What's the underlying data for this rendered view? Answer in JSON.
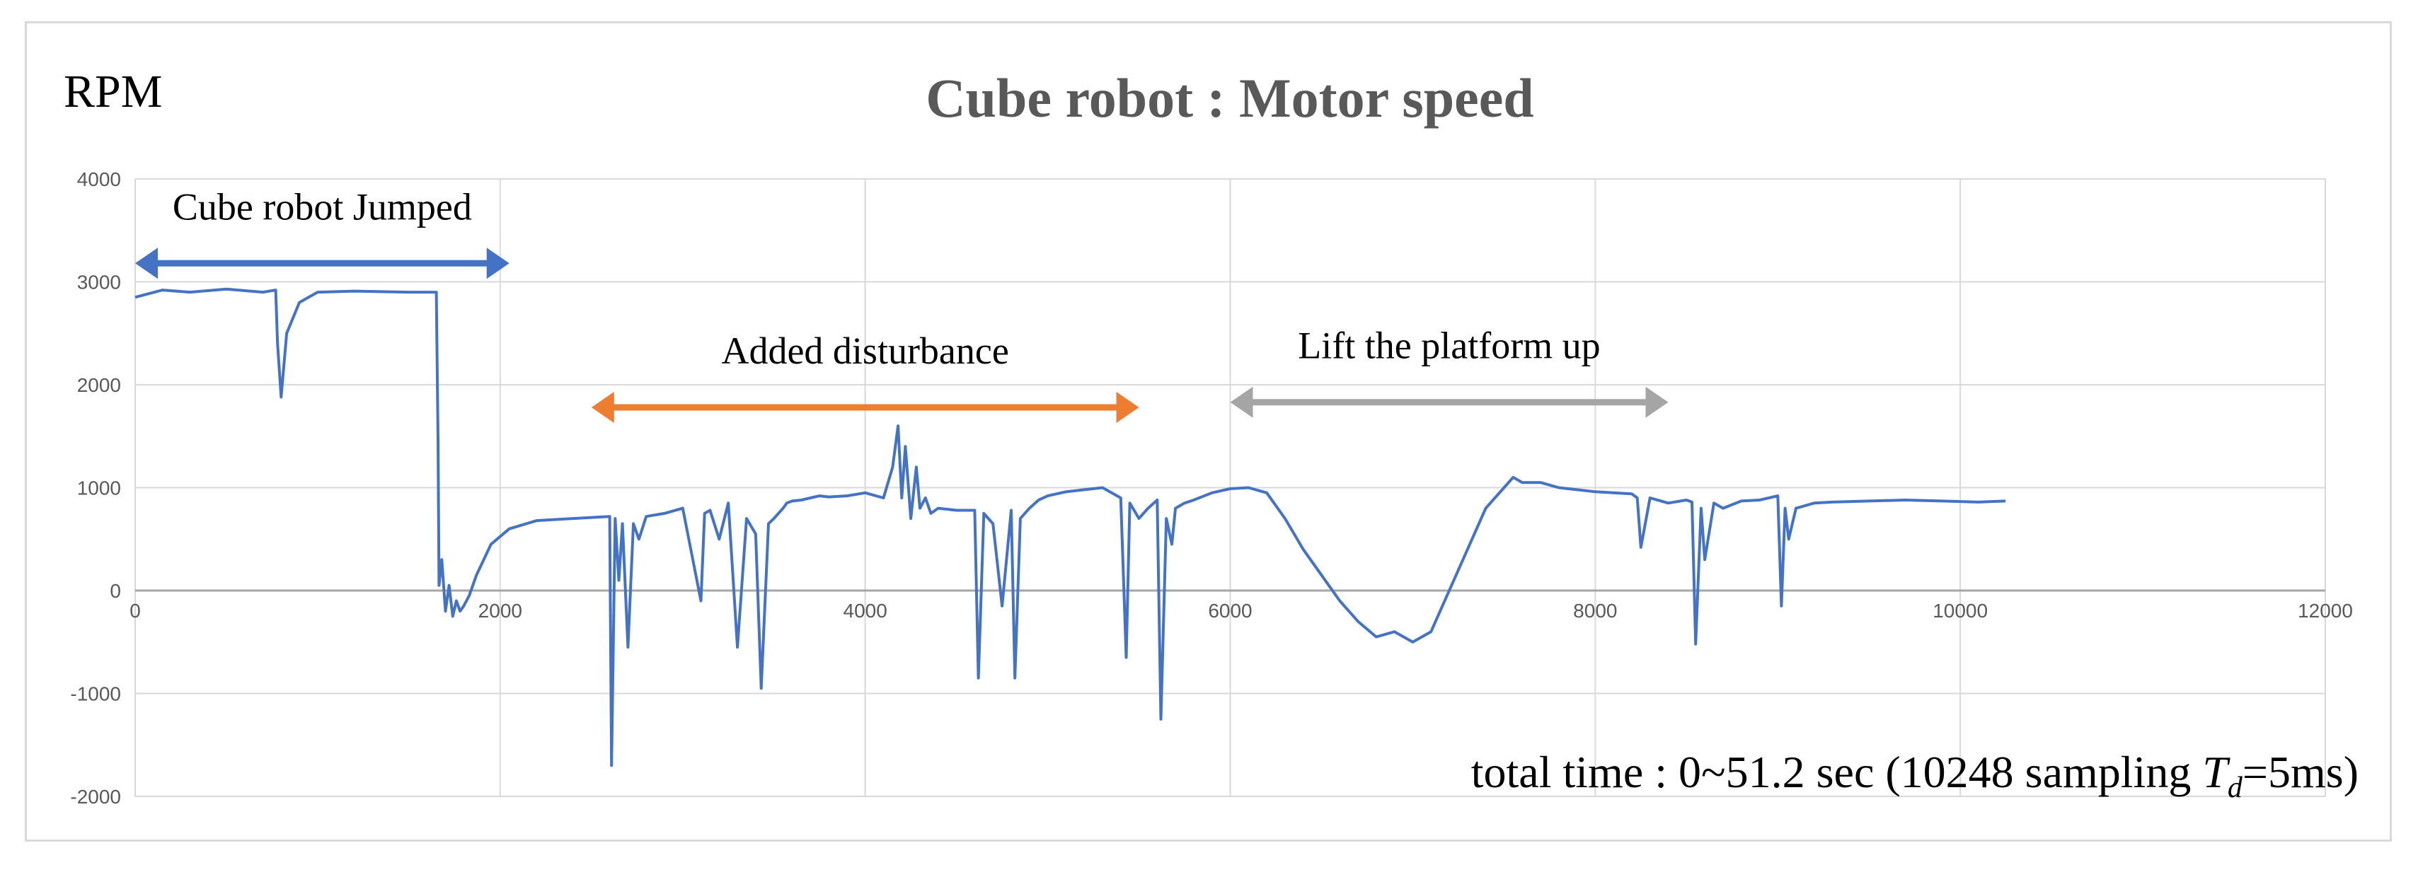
{
  "chart_data": {
    "type": "line",
    "title": "Cube robot : Motor speed",
    "ylabel": "RPM",
    "xlabel": "",
    "xlim": [
      0,
      12000
    ],
    "ylim": [
      -2000,
      4000
    ],
    "x_ticks": [
      0,
      2000,
      4000,
      6000,
      8000,
      10000,
      12000
    ],
    "y_ticks": [
      -2000,
      -1000,
      0,
      1000,
      2000,
      3000,
      4000
    ],
    "grid": true,
    "legend": "none",
    "series": [
      {
        "color": "#4472c4",
        "x": [
          0,
          150,
          300,
          500,
          700,
          770,
          780,
          800,
          830,
          900,
          1000,
          1200,
          1500,
          1650,
          1660,
          1665,
          1680,
          1700,
          1720,
          1740,
          1760,
          1780,
          1800,
          1830,
          1870,
          1950,
          2050,
          2200,
          2400,
          2600,
          2610,
          2630,
          2650,
          2670,
          2700,
          2730,
          2760,
          2800,
          2900,
          3000,
          3100,
          3120,
          3150,
          3200,
          3250,
          3300,
          3350,
          3400,
          3430,
          3470,
          3500,
          3550,
          3570,
          3600,
          3650,
          3700,
          3750,
          3800,
          3900,
          4000,
          4100,
          4150,
          4180,
          4200,
          4220,
          4250,
          4280,
          4300,
          4330,
          4360,
          4400,
          4500,
          4600,
          4620,
          4650,
          4700,
          4750,
          4800,
          4820,
          4850,
          4900,
          4950,
          5000,
          5100,
          5200,
          5300,
          5400,
          5430,
          5450,
          5500,
          5550,
          5600,
          5620,
          5650,
          5680,
          5700,
          5750,
          5800,
          5900,
          6000,
          6100,
          6200,
          6300,
          6400,
          6500,
          6600,
          6700,
          6800,
          6900,
          7000,
          7100,
          7200,
          7300,
          7400,
          7500,
          7550,
          7600,
          7700,
          7800,
          7900,
          8000,
          8100,
          8200,
          8230,
          8250,
          8300,
          8400,
          8500,
          8530,
          8550,
          8580,
          8600,
          8650,
          8700,
          8800,
          8900,
          9000,
          9020,
          9040,
          9060,
          9100,
          9200,
          9300,
          9500,
          9700,
          9900,
          10100,
          10248
        ],
        "y": [
          2850,
          2920,
          2900,
          2930,
          2900,
          2920,
          2400,
          1880,
          2500,
          2800,
          2900,
          2910,
          2900,
          2900,
          1400,
          50,
          300,
          -200,
          50,
          -250,
          -100,
          -200,
          -150,
          -50,
          150,
          450,
          600,
          680,
          700,
          720,
          -1700,
          700,
          100,
          650,
          -550,
          650,
          500,
          720,
          750,
          800,
          -100,
          750,
          780,
          500,
          850,
          -550,
          700,
          550,
          -950,
          650,
          700,
          800,
          850,
          870,
          880,
          900,
          920,
          910,
          920,
          950,
          900,
          1200,
          1600,
          900,
          1400,
          700,
          1200,
          800,
          900,
          750,
          800,
          780,
          780,
          -850,
          750,
          650,
          -150,
          780,
          -850,
          700,
          800,
          880,
          920,
          960,
          980,
          1000,
          900,
          -650,
          850,
          700,
          800,
          880,
          -1250,
          700,
          450,
          800,
          850,
          880,
          950,
          990,
          1000,
          950,
          700,
          400,
          150,
          -100,
          -300,
          -450,
          -400,
          -500,
          -400,
          0,
          400,
          800,
          1000,
          1100,
          1050,
          1050,
          1000,
          980,
          960,
          950,
          940,
          900,
          420,
          900,
          850,
          880,
          860,
          -520,
          800,
          300,
          850,
          800,
          870,
          880,
          920,
          -150,
          800,
          500,
          800,
          850,
          860,
          870,
          880,
          870,
          860,
          870
        ]
      }
    ],
    "annotations": [
      {
        "text": "Cube robot Jumped",
        "color": "#4472c4",
        "x_start": 0,
        "x_end": 2050,
        "y": 3180
      },
      {
        "text": "Added disturbance",
        "color": "#ed7d31",
        "x_start": 2500,
        "x_end": 5500,
        "y": 1780
      },
      {
        "text": "Lift the platform up",
        "color": "#a5a5a5",
        "x_start": 6000,
        "x_end": 8400,
        "y": 1830
      }
    ],
    "note": {
      "prefix": "total time : 0~51.2 sec (10248 sampling ",
      "symbol": "T",
      "subscript": "d",
      "suffix": "=5ms)"
    }
  }
}
